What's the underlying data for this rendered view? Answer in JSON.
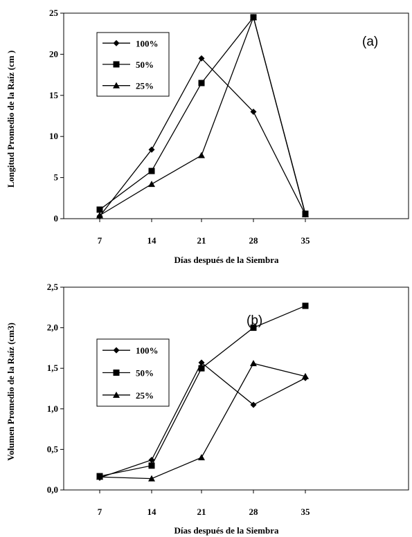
{
  "chart_data": [
    {
      "type": "line",
      "panel_label": "(a)",
      "x": [
        7,
        14,
        21,
        28,
        35
      ],
      "xlabel": "Días después de la Siembra",
      "ylabel": "Longitud Promedio de la Raíz (cm )",
      "ylim": [
        0,
        25
      ],
      "yticks": [
        0,
        5,
        10,
        15,
        20,
        25
      ],
      "ytick_labels": [
        "0",
        "5",
        "10",
        "15",
        "20",
        "25"
      ],
      "xtick_labels": [
        "7",
        "14",
        "21",
        "28",
        "35"
      ],
      "legend_position": "top-left",
      "series": [
        {
          "name": "100%",
          "marker": "diamond",
          "values": [
            0.3,
            8.4,
            19.5,
            13.0,
            0.5
          ]
        },
        {
          "name": "50%",
          "marker": "square",
          "values": [
            1.1,
            5.8,
            16.5,
            24.5,
            0.6
          ]
        },
        {
          "name": "25%",
          "marker": "triangle",
          "values": [
            0.4,
            4.2,
            7.7,
            24.5,
            0.5
          ]
        }
      ]
    },
    {
      "type": "line",
      "panel_label": "(b)",
      "x": [
        7,
        14,
        21,
        28,
        35
      ],
      "xlabel": "Días después de la Siembra",
      "ylabel": "Volumen Promedio de la Raíz (cm3)",
      "ylim": [
        0,
        2.5
      ],
      "yticks": [
        0,
        0.5,
        1.0,
        1.5,
        2.0,
        2.5
      ],
      "ytick_labels": [
        "0,0",
        "0,5",
        "1,0",
        "1,5",
        "2,0",
        "2,5"
      ],
      "xtick_labels": [
        "7",
        "14",
        "21",
        "28",
        "35"
      ],
      "legend_position": "left",
      "series": [
        {
          "name": "100%",
          "marker": "diamond",
          "values": [
            0.15,
            0.37,
            1.57,
            1.05,
            1.38
          ]
        },
        {
          "name": "50%",
          "marker": "square",
          "values": [
            0.17,
            0.3,
            1.5,
            2.0,
            2.27
          ]
        },
        {
          "name": "25%",
          "marker": "triangle",
          "values": [
            0.16,
            0.14,
            0.4,
            1.56,
            1.4
          ]
        }
      ]
    }
  ]
}
